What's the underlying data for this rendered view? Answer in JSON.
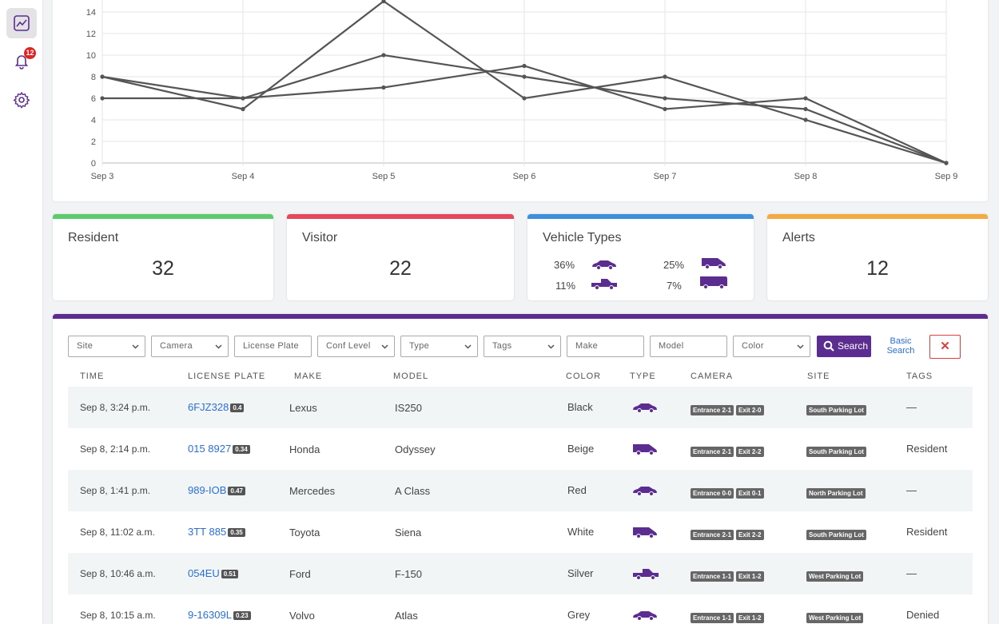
{
  "sidebar": {
    "items": [
      {
        "icon": "line-chart-icon",
        "active": true
      },
      {
        "icon": "bell-icon",
        "badge": "12"
      },
      {
        "icon": "gear-icon"
      }
    ]
  },
  "chart_data": {
    "type": "line",
    "x": [
      "Sep 3",
      "Sep 4",
      "Sep 5",
      "Sep 6",
      "Sep 7",
      "Sep 8",
      "Sep 9"
    ],
    "series": [
      {
        "values": [
          8,
          5,
          15,
          6,
          8,
          4,
          0
        ]
      },
      {
        "values": [
          8,
          6,
          10,
          8,
          6,
          5,
          0
        ]
      },
      {
        "values": [
          6,
          6,
          7,
          9,
          5,
          6,
          0
        ]
      }
    ],
    "yticks": [
      0,
      2,
      4,
      6,
      8,
      10,
      12,
      14
    ],
    "ylim": [
      0,
      16
    ],
    "grid": true,
    "color": "#555555"
  },
  "stats": {
    "resident": {
      "title": "Resident",
      "value": "32",
      "color": "#5ccb6e"
    },
    "visitor": {
      "title": "Visitor",
      "value": "22",
      "color": "#e5475d"
    },
    "vehicle_types": {
      "title": "Vehicle Types",
      "color": "#3b8fdc",
      "items": [
        {
          "pct": "36%",
          "icon": "sedan-icon"
        },
        {
          "pct": "25%",
          "icon": "van-icon"
        },
        {
          "pct": "11%",
          "icon": "pickup-icon"
        },
        {
          "pct": "7%",
          "icon": "bus-icon"
        }
      ]
    },
    "alerts": {
      "title": "Alerts",
      "value": "12",
      "color": "#f5a941"
    }
  },
  "filters": {
    "site": "Site",
    "camera": "Camera",
    "license_plate": "License Plate",
    "conf_level": "Conf Level",
    "type": "Type",
    "tags": "Tags",
    "make": "Make",
    "model": "Model",
    "color": "Color",
    "search": "Search",
    "basic_search": "Basic Search",
    "clear": "✕"
  },
  "table": {
    "headers": {
      "time": "TIME",
      "plate": "LICENSE PLATE",
      "make": "MAKE",
      "model": "MODEL",
      "color": "COLOR",
      "type": "TYPE",
      "camera": "CAMERA",
      "site": "SITE",
      "tags": "TAGS"
    },
    "rows": [
      {
        "time": "Sep 8, 3:24 p.m.",
        "plate": "6FJZ328",
        "conf": "0.4",
        "make": "Lexus",
        "model": "IS250",
        "color": "Black",
        "type": "sedan",
        "entrance": "Entrance 2-1",
        "exit": "Exit 2-0",
        "site": "South Parking Lot",
        "tags": "—"
      },
      {
        "time": "Sep 8, 2:14 p.m.",
        "plate": "015 8927",
        "conf": "0.34",
        "make": "Honda",
        "model": "Odyssey",
        "color": "Beige",
        "type": "van",
        "entrance": "Entrance 2-1",
        "exit": "Exit 2-2",
        "site": "South Parking Lot",
        "tags": "Resident"
      },
      {
        "time": "Sep 8, 1:41 p.m.",
        "plate": "989-IOB",
        "conf": "0.47",
        "make": "Mercedes",
        "model": "A Class",
        "color": "Red",
        "type": "sedan",
        "entrance": "Entrance 0-0",
        "exit": "Exit 0-1",
        "site": "North Parking Lot",
        "tags": "—"
      },
      {
        "time": "Sep 8, 11:02 a.m.",
        "plate": "3TT 885",
        "conf": "0.35",
        "make": "Toyota",
        "model": "Siena",
        "color": "White",
        "type": "van",
        "entrance": "Entrance 2-1",
        "exit": "Exit 2-2",
        "site": "South Parking Lot",
        "tags": "Resident"
      },
      {
        "time": "Sep 8, 10:46 a.m.",
        "plate": "054EU",
        "conf": "0.51",
        "make": "Ford",
        "model": "F-150",
        "color": "Silver",
        "type": "pickup",
        "entrance": "Entrance 1-1",
        "exit": "Exit 1-2",
        "site": "West Parking Lot",
        "tags": "—"
      },
      {
        "time": "Sep 8, 10:15 a.m.",
        "plate": "9-16309L",
        "conf": "0.23",
        "make": "Volvo",
        "model": "Atlas",
        "color": "Grey",
        "type": "sedan",
        "entrance": "Entrance 1-1",
        "exit": "Exit 1-2",
        "site": "West Parking Lot",
        "tags": "Denied"
      }
    ]
  },
  "accent": "#5c2d91",
  "link_color": "#2a6fd6"
}
